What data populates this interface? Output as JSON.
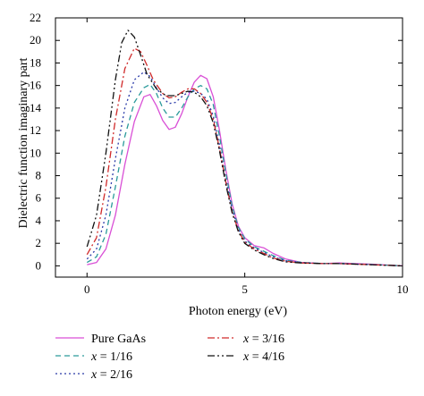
{
  "chart_data": {
    "type": "line",
    "xlabel": "Photon energy (eV)",
    "ylabel": "Dielectric function imaginary part",
    "xlim": [
      -1,
      10
    ],
    "ylim": [
      -1,
      22
    ],
    "x_ticks": [
      0,
      5,
      10
    ],
    "y_ticks": [
      0,
      2,
      4,
      6,
      8,
      10,
      12,
      14,
      16,
      18,
      20,
      22
    ],
    "grid": false,
    "legend_placement": "bottom, outside plot, two columns",
    "series": [
      {
        "name": "Pure GaAs",
        "color": "#d94fd6",
        "dash": "solid",
        "points": [
          [
            0,
            0.1
          ],
          [
            0.3,
            0.3
          ],
          [
            0.6,
            1.5
          ],
          [
            0.9,
            4.5
          ],
          [
            1.2,
            9.0
          ],
          [
            1.5,
            12.8
          ],
          [
            1.8,
            15.0
          ],
          [
            2.0,
            15.2
          ],
          [
            2.2,
            14.2
          ],
          [
            2.4,
            12.9
          ],
          [
            2.6,
            12.1
          ],
          [
            2.8,
            12.3
          ],
          [
            3.0,
            13.5
          ],
          [
            3.2,
            15.0
          ],
          [
            3.4,
            16.3
          ],
          [
            3.6,
            16.9
          ],
          [
            3.8,
            16.6
          ],
          [
            4.0,
            15.0
          ],
          [
            4.2,
            12.0
          ],
          [
            4.4,
            8.5
          ],
          [
            4.6,
            5.5
          ],
          [
            4.8,
            3.5
          ],
          [
            5.0,
            2.5
          ],
          [
            5.3,
            1.8
          ],
          [
            5.6,
            1.6
          ],
          [
            5.9,
            1.1
          ],
          [
            6.3,
            0.6
          ],
          [
            6.8,
            0.3
          ],
          [
            7.5,
            0.2
          ],
          [
            8.0,
            0.25
          ],
          [
            9.0,
            0.15
          ],
          [
            10.0,
            0.0
          ]
        ]
      },
      {
        "name": "x = 1/16",
        "color": "#2a9a9a",
        "dash": "6,4",
        "points": [
          [
            0,
            0.3
          ],
          [
            0.3,
            0.8
          ],
          [
            0.6,
            2.8
          ],
          [
            0.9,
            7.0
          ],
          [
            1.2,
            11.5
          ],
          [
            1.5,
            14.5
          ],
          [
            1.8,
            15.8
          ],
          [
            2.0,
            16.1
          ],
          [
            2.2,
            15.3
          ],
          [
            2.4,
            14.0
          ],
          [
            2.6,
            13.2
          ],
          [
            2.8,
            13.2
          ],
          [
            3.0,
            14.0
          ],
          [
            3.2,
            15.0
          ],
          [
            3.4,
            15.7
          ],
          [
            3.6,
            16.0
          ],
          [
            3.8,
            15.7
          ],
          [
            4.0,
            14.3
          ],
          [
            4.2,
            11.5
          ],
          [
            4.4,
            8.2
          ],
          [
            4.6,
            5.3
          ],
          [
            4.8,
            3.4
          ],
          [
            5.0,
            2.4
          ],
          [
            5.3,
            1.7
          ],
          [
            5.6,
            1.3
          ],
          [
            5.9,
            0.9
          ],
          [
            6.3,
            0.5
          ],
          [
            6.8,
            0.3
          ],
          [
            7.5,
            0.2
          ],
          [
            8.0,
            0.22
          ],
          [
            9.0,
            0.12
          ],
          [
            10.0,
            0.0
          ]
        ]
      },
      {
        "name": "x = 2/16",
        "color": "#2a3aa8",
        "dash": "2,3",
        "points": [
          [
            0,
            0.6
          ],
          [
            0.3,
            1.5
          ],
          [
            0.6,
            4.5
          ],
          [
            0.9,
            9.5
          ],
          [
            1.2,
            14.0
          ],
          [
            1.5,
            16.5
          ],
          [
            1.8,
            17.2
          ],
          [
            2.0,
            16.8
          ],
          [
            2.2,
            15.8
          ],
          [
            2.4,
            14.9
          ],
          [
            2.6,
            14.4
          ],
          [
            2.8,
            14.5
          ],
          [
            3.0,
            15.0
          ],
          [
            3.2,
            15.4
          ],
          [
            3.4,
            15.5
          ],
          [
            3.6,
            15.3
          ],
          [
            3.8,
            14.8
          ],
          [
            4.0,
            13.3
          ],
          [
            4.2,
            10.7
          ],
          [
            4.4,
            7.6
          ],
          [
            4.6,
            5.0
          ],
          [
            4.8,
            3.2
          ],
          [
            5.0,
            2.2
          ],
          [
            5.3,
            1.6
          ],
          [
            5.6,
            1.2
          ],
          [
            5.9,
            0.8
          ],
          [
            6.3,
            0.45
          ],
          [
            6.8,
            0.3
          ],
          [
            7.5,
            0.2
          ],
          [
            8.0,
            0.2
          ],
          [
            9.0,
            0.1
          ],
          [
            10.0,
            0.0
          ]
        ]
      },
      {
        "name": "x = 3/16",
        "color": "#d02a2a",
        "dash": "8,3,2,3",
        "points": [
          [
            0,
            1.0
          ],
          [
            0.3,
            2.5
          ],
          [
            0.6,
            7.0
          ],
          [
            0.9,
            13.0
          ],
          [
            1.2,
            17.5
          ],
          [
            1.5,
            19.3
          ],
          [
            1.7,
            19.0
          ],
          [
            1.9,
            17.8
          ],
          [
            2.1,
            16.5
          ],
          [
            2.4,
            15.3
          ],
          [
            2.6,
            14.9
          ],
          [
            2.8,
            15.0
          ],
          [
            3.0,
            15.4
          ],
          [
            3.2,
            15.7
          ],
          [
            3.4,
            15.7
          ],
          [
            3.6,
            15.3
          ],
          [
            3.8,
            14.5
          ],
          [
            4.0,
            13.0
          ],
          [
            4.2,
            10.4
          ],
          [
            4.4,
            7.4
          ],
          [
            4.6,
            4.8
          ],
          [
            4.8,
            3.1
          ],
          [
            5.0,
            2.1
          ],
          [
            5.3,
            1.5
          ],
          [
            5.6,
            1.1
          ],
          [
            5.9,
            0.7
          ],
          [
            6.3,
            0.4
          ],
          [
            6.8,
            0.25
          ],
          [
            7.5,
            0.2
          ],
          [
            8.0,
            0.2
          ],
          [
            9.0,
            0.1
          ],
          [
            10.0,
            0.0
          ]
        ]
      },
      {
        "name": "x = 4/16",
        "color": "#111111",
        "dash": "8,3,2,3,2,3",
        "points": [
          [
            0,
            1.7
          ],
          [
            0.3,
            4.5
          ],
          [
            0.6,
            10.0
          ],
          [
            0.9,
            16.5
          ],
          [
            1.1,
            19.8
          ],
          [
            1.3,
            20.9
          ],
          [
            1.5,
            20.3
          ],
          [
            1.7,
            18.7
          ],
          [
            1.9,
            17.0
          ],
          [
            2.2,
            15.7
          ],
          [
            2.5,
            15.1
          ],
          [
            2.8,
            15.1
          ],
          [
            3.0,
            15.3
          ],
          [
            3.2,
            15.5
          ],
          [
            3.4,
            15.4
          ],
          [
            3.6,
            15.0
          ],
          [
            3.8,
            14.2
          ],
          [
            4.0,
            12.7
          ],
          [
            4.2,
            10.2
          ],
          [
            4.4,
            7.2
          ],
          [
            4.6,
            4.7
          ],
          [
            4.8,
            3.0
          ],
          [
            5.0,
            2.0
          ],
          [
            5.3,
            1.4
          ],
          [
            5.6,
            1.0
          ],
          [
            5.9,
            0.65
          ],
          [
            6.3,
            0.35
          ],
          [
            6.8,
            0.25
          ],
          [
            7.5,
            0.2
          ],
          [
            8.0,
            0.2
          ],
          [
            9.0,
            0.1
          ],
          [
            10.0,
            0.0
          ]
        ]
      }
    ]
  }
}
